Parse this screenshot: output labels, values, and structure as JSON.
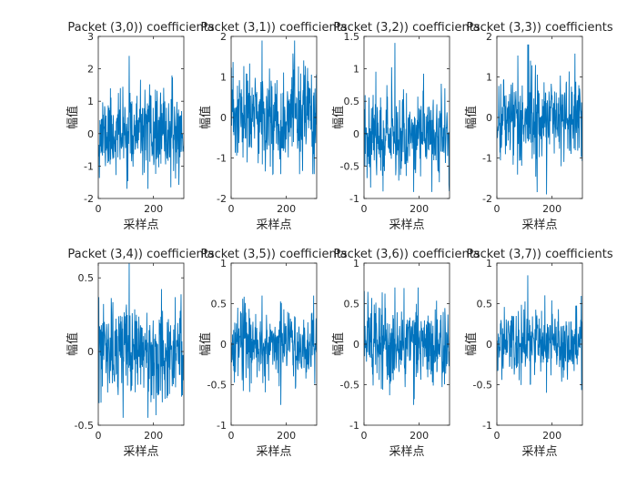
{
  "chart_data": [
    {
      "type": "line",
      "title": "Packet (3,0)) coefficients",
      "xlabel": "采样点",
      "ylabel": "幅值",
      "xlim": [
        0,
        310
      ],
      "ylim": [
        -2,
        3
      ],
      "xticks": [
        0,
        200
      ],
      "yticks": [
        -2,
        -1,
        0,
        1,
        2,
        3
      ],
      "grid": false,
      "n_points": 310,
      "seed": 11,
      "amplitude": 0.62,
      "y_min_observed": -1.7,
      "y_max_observed": 2.4,
      "series": [
        {
          "values": []
        }
      ]
    },
    {
      "type": "line",
      "title": "Packet (3,1)) coefficients",
      "xlabel": "采样点",
      "ylabel": "幅值",
      "xlim": [
        0,
        310
      ],
      "ylim": [
        -2,
        2
      ],
      "xticks": [
        0,
        200
      ],
      "yticks": [
        -2,
        -1,
        0,
        1,
        2
      ],
      "grid": false,
      "n_points": 310,
      "seed": 23,
      "amplitude": 0.62,
      "y_min_observed": -1.4,
      "y_max_observed": 1.9,
      "series": [
        {
          "values": []
        }
      ]
    },
    {
      "type": "line",
      "title": "Packet (3,2)) coefficients",
      "xlabel": "采样点",
      "ylabel": "幅值",
      "xlim": [
        0,
        310
      ],
      "ylim": [
        -1,
        1.5
      ],
      "xticks": [
        0,
        200
      ],
      "yticks": [
        -1,
        -0.5,
        0,
        0.5,
        1,
        1.5
      ],
      "grid": false,
      "n_points": 310,
      "seed": 37,
      "amplitude": 0.33,
      "y_min_observed": -0.9,
      "y_max_observed": 1.4,
      "series": [
        {
          "values": []
        }
      ]
    },
    {
      "type": "line",
      "title": "Packet (3,3)) coefficients",
      "xlabel": "采样点",
      "ylabel": "幅值",
      "xlim": [
        0,
        310
      ],
      "ylim": [
        -2,
        2
      ],
      "xticks": [
        0,
        200
      ],
      "yticks": [
        -2,
        -1,
        0,
        1,
        2
      ],
      "grid": false,
      "n_points": 310,
      "seed": 41,
      "amplitude": 0.55,
      "y_min_observed": -1.9,
      "y_max_observed": 1.8,
      "series": [
        {
          "values": []
        }
      ]
    },
    {
      "type": "line",
      "title": "Packet (3,4)) coefficients",
      "xlabel": "采样点",
      "ylabel": "幅值",
      "xlim": [
        0,
        310
      ],
      "ylim": [
        -0.5,
        0.6
      ],
      "xticks": [
        0,
        200
      ],
      "yticks": [
        -0.5,
        0,
        0.5
      ],
      "grid": false,
      "n_points": 310,
      "seed": 53,
      "amplitude": 0.16,
      "y_min_observed": -0.45,
      "y_max_observed": 0.6,
      "series": [
        {
          "values": []
        }
      ]
    },
    {
      "type": "line",
      "title": "Packet (3,5)) coefficients",
      "xlabel": "采样点",
      "ylabel": "幅值",
      "xlim": [
        0,
        310
      ],
      "ylim": [
        -1,
        1
      ],
      "xticks": [
        0,
        200
      ],
      "yticks": [
        -1,
        -0.5,
        0,
        0.5,
        1
      ],
      "grid": false,
      "n_points": 310,
      "seed": 67,
      "amplitude": 0.22,
      "y_min_observed": -0.75,
      "y_max_observed": 0.6,
      "series": [
        {
          "values": []
        }
      ]
    },
    {
      "type": "line",
      "title": "Packet (3,6)) coefficients",
      "xlabel": "采样点",
      "ylabel": "幅值",
      "xlim": [
        0,
        310
      ],
      "ylim": [
        -1,
        1
      ],
      "xticks": [
        0,
        200
      ],
      "yticks": [
        -1,
        -0.5,
        0,
        0.5,
        1
      ],
      "grid": false,
      "n_points": 310,
      "seed": 79,
      "amplitude": 0.25,
      "y_min_observed": -0.75,
      "y_max_observed": 0.7,
      "series": [
        {
          "values": []
        }
      ]
    },
    {
      "type": "line",
      "title": "Packet (3,7)) coefficients",
      "xlabel": "采样点",
      "ylabel": "幅值",
      "xlim": [
        0,
        310
      ],
      "ylim": [
        -1,
        1
      ],
      "xticks": [
        0,
        200
      ],
      "yticks": [
        -1,
        -0.5,
        0,
        0.5,
        1
      ],
      "grid": false,
      "n_points": 310,
      "seed": 97,
      "amplitude": 0.22,
      "y_min_observed": -0.6,
      "y_max_observed": 0.85,
      "series": [
        {
          "values": []
        }
      ]
    }
  ],
  "colors": {
    "series": "#0072BD",
    "axis": "#262626",
    "background": "#ffffff"
  }
}
